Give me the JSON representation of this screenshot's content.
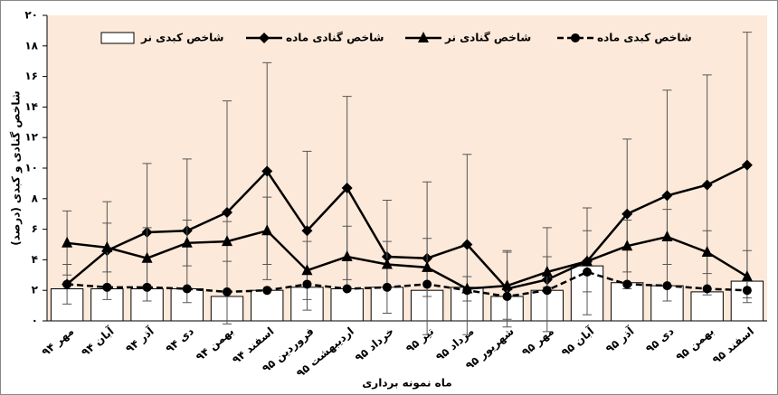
{
  "chart_data": {
    "type": "line",
    "ylabel": "شاخص گنادی و کبدی (درصد)",
    "xlabel": "ماه نمونه برداری",
    "categories": [
      "مهر ۹۴",
      "آبان ۹۴",
      "آذر ۹۴",
      "دی ۹۴",
      "بهمن ۹۴",
      "اسفند ۹۴",
      "فروردین ۹۵",
      "اردیبهشت ۹۵",
      "خرداد ۹۵",
      "تیر ۹۵",
      "مرداد ۹۵",
      "شهریور ۹۵",
      "مهر ۹۵",
      "آبان ۹۵",
      "آذر ۹۵",
      "دی ۹۵",
      "بهمن ۹۵",
      "اسفند ۹۵"
    ],
    "ylim": [
      0,
      20
    ],
    "yticks": [
      {
        "value": 0,
        "label": "۰"
      },
      {
        "value": 2,
        "label": "۲"
      },
      {
        "value": 4,
        "label": "۴"
      },
      {
        "value": 6,
        "label": "۶"
      },
      {
        "value": 8,
        "label": "۸"
      },
      {
        "value": 10,
        "label": "۱۰"
      },
      {
        "value": 12,
        "label": "۱۲"
      },
      {
        "value": 14,
        "label": "۱۴"
      },
      {
        "value": 16,
        "label": "۱۶"
      },
      {
        "value": 18,
        "label": "۱۸"
      },
      {
        "value": 20,
        "label": "۲۰"
      }
    ],
    "background": "#fde9d9",
    "series": [
      {
        "name": "شاخص کبدی نر",
        "style": "bar",
        "color": "#000000",
        "values": [
          2.1,
          2.1,
          2.1,
          2.1,
          1.6,
          2.0,
          2.2,
          2.1,
          2.2,
          2.0,
          2.2,
          1.6,
          2.0,
          3.6,
          2.5,
          2.3,
          1.9,
          2.6
        ]
      },
      {
        "name": "شاخص گنادی ماده",
        "style": "line",
        "marker": "diamond",
        "dashed": false,
        "color": "#000000",
        "values": [
          2.4,
          4.6,
          5.8,
          5.9,
          7.1,
          9.8,
          5.9,
          8.7,
          4.2,
          4.1,
          5.0,
          2.1,
          2.7,
          3.9,
          7.0,
          8.2,
          8.9,
          10.2
        ],
        "errors": [
          1.3,
          3.2,
          4.5,
          4.7,
          7.3,
          7.1,
          5.2,
          6.0,
          3.7,
          5.0,
          5.9,
          2.5,
          3.4,
          3.5,
          4.9,
          6.9,
          7.2,
          8.7
        ]
      },
      {
        "name": "شاخص گنادی نر",
        "style": "line",
        "marker": "triangle",
        "dashed": false,
        "color": "#000000",
        "values": [
          5.1,
          4.8,
          4.1,
          5.1,
          5.2,
          5.9,
          3.3,
          4.2,
          3.7,
          3.5,
          2.1,
          2.3,
          3.2,
          3.9,
          4.9,
          5.5,
          4.5,
          2.9
        ],
        "errors": [
          2.1,
          1.6,
          2.0,
          1.5,
          1.3,
          2.2,
          1.9,
          2.0,
          1.5,
          1.9,
          0.8,
          2.2,
          1.0,
          2.0,
          1.7,
          1.8,
          1.4,
          1.7
        ]
      },
      {
        "name": "شاخص کبدی ماده",
        "style": "line",
        "marker": "circle",
        "dashed": true,
        "color": "#000000",
        "values": [
          2.4,
          2.2,
          2.2,
          2.1,
          1.9,
          2.0,
          2.4,
          2.1,
          2.2,
          2.4,
          2.0,
          1.6,
          2.0,
          3.2,
          2.4,
          2.3,
          2.1,
          2.0
        ]
      }
    ]
  }
}
